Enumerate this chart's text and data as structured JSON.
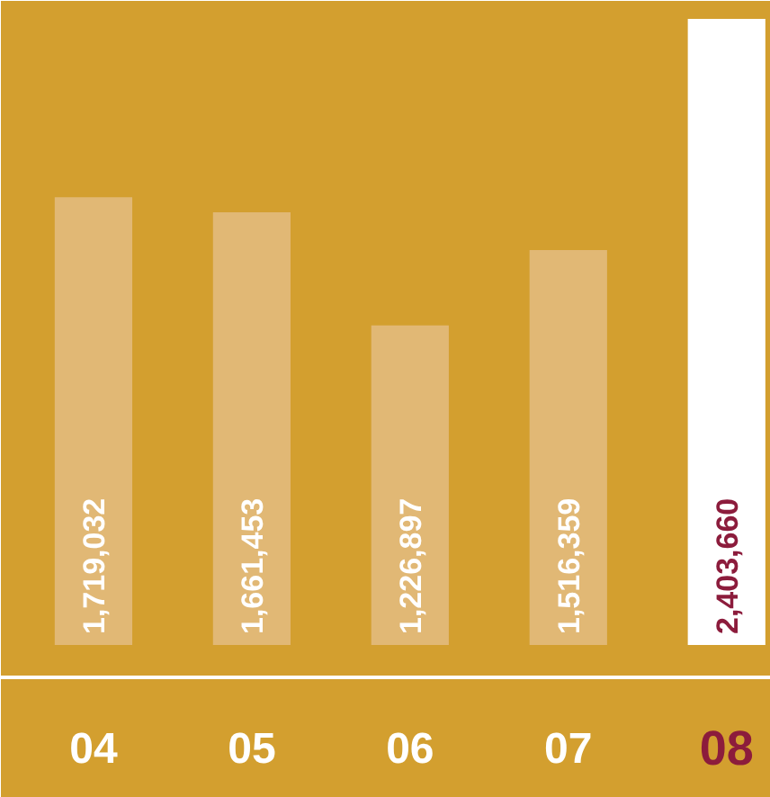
{
  "chart_data": {
    "type": "bar",
    "categories": [
      "04",
      "05",
      "06",
      "07",
      "08"
    ],
    "values": [
      1719032,
      1661453,
      1226897,
      1516359,
      2403660
    ],
    "value_labels": [
      "1,719,032",
      "1,661,453",
      "1,226,897",
      "1,516,359",
      "2,403,660"
    ],
    "colors": [
      "#e1b875",
      "#e1b875",
      "#e1b875",
      "#e1b875",
      "#ffffff"
    ]
  }
}
